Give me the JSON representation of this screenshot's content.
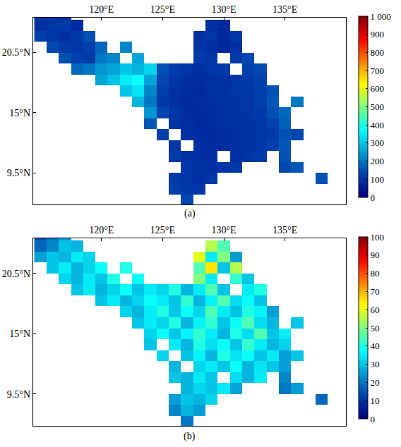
{
  "chart_data": [
    {
      "type": "heatmap",
      "label": "(a)",
      "xlim": [
        114.4,
        140.0
      ],
      "xticks": [
        {
          "value": 120,
          "label": "120°E"
        },
        {
          "value": 125,
          "label": "125°E"
        },
        {
          "value": 130,
          "label": "130°E"
        },
        {
          "value": 135,
          "label": "135°E"
        }
      ],
      "ylim": [
        6.6,
        23.7
      ],
      "yticks": [
        {
          "value": 9.5,
          "label": "9.5°N"
        },
        {
          "value": 15,
          "label": "15°N"
        },
        {
          "value": 20.5,
          "label": "20.5°N"
        }
      ],
      "colorbar_range": [
        0,
        1000
      ],
      "colorbar_ticks": [
        0,
        100,
        200,
        300,
        400,
        500,
        600,
        700,
        800,
        900,
        {
          "value": 1000,
          "label": "1 000"
        }
      ],
      "x": [
        115,
        116,
        117,
        118,
        119,
        120,
        121,
        122,
        123,
        124,
        125,
        126,
        127,
        128,
        129,
        130,
        131,
        132,
        133,
        134,
        135,
        136,
        137,
        138,
        139
      ],
      "y": [
        24,
        23,
        22,
        21,
        20,
        19,
        18,
        17,
        16,
        15,
        14,
        13,
        12,
        11,
        10,
        9,
        8,
        7
      ],
      "z": [
        [
          110,
          120,
          100,
          null,
          null,
          null,
          null,
          null,
          null,
          null,
          null,
          null,
          null,
          null,
          null,
          null,
          null,
          null,
          null,
          null,
          null,
          null,
          null,
          null,
          null
        ],
        [
          100,
          110,
          120,
          90,
          null,
          null,
          null,
          null,
          null,
          null,
          null,
          null,
          null,
          null,
          100,
          90,
          null,
          null,
          null,
          null,
          null,
          null,
          null,
          null,
          null
        ],
        [
          130,
          110,
          100,
          120,
          150,
          null,
          null,
          null,
          null,
          null,
          null,
          null,
          null,
          100,
          110,
          90,
          120,
          null,
          null,
          null,
          null,
          null,
          null,
          null,
          null
        ],
        [
          null,
          140,
          120,
          110,
          130,
          180,
          null,
          220,
          null,
          null,
          null,
          null,
          null,
          110,
          100,
          90,
          100,
          null,
          null,
          null,
          null,
          null,
          null,
          null,
          null
        ],
        [
          null,
          null,
          150,
          130,
          120,
          200,
          220,
          null,
          260,
          null,
          null,
          null,
          null,
          120,
          110,
          null,
          120,
          140,
          null,
          null,
          null,
          null,
          null,
          null,
          null
        ],
        [
          null,
          null,
          null,
          180,
          200,
          240,
          260,
          300,
          280,
          320,
          150,
          120,
          110,
          100,
          110,
          120,
          null,
          130,
          140,
          null,
          null,
          null,
          null,
          null,
          null
        ],
        [
          null,
          null,
          null,
          null,
          null,
          260,
          300,
          350,
          380,
          260,
          140,
          110,
          100,
          95,
          100,
          105,
          110,
          120,
          130,
          null,
          null,
          null,
          null,
          null,
          null
        ],
        [
          null,
          null,
          null,
          null,
          null,
          null,
          null,
          300,
          340,
          220,
          130,
          105,
          95,
          90,
          100,
          100,
          110,
          115,
          130,
          150,
          null,
          null,
          null,
          null,
          null
        ],
        [
          null,
          null,
          null,
          null,
          null,
          null,
          null,
          null,
          280,
          200,
          120,
          100,
          90,
          95,
          100,
          100,
          105,
          110,
          130,
          160,
          null,
          200,
          null,
          null,
          null
        ],
        [
          null,
          null,
          null,
          null,
          null,
          null,
          null,
          null,
          null,
          240,
          140,
          110,
          95,
          90,
          95,
          100,
          100,
          110,
          120,
          150,
          180,
          null,
          null,
          null,
          null
        ],
        [
          null,
          null,
          null,
          null,
          null,
          null,
          null,
          null,
          null,
          160,
          null,
          110,
          100,
          90,
          95,
          100,
          100,
          105,
          110,
          130,
          170,
          null,
          null,
          null,
          null
        ],
        [
          null,
          null,
          null,
          null,
          null,
          null,
          null,
          null,
          null,
          null,
          130,
          null,
          100,
          95,
          90,
          95,
          100,
          105,
          110,
          120,
          150,
          140,
          null,
          null,
          null
        ],
        [
          null,
          null,
          null,
          null,
          null,
          null,
          null,
          null,
          null,
          null,
          null,
          110,
          null,
          100,
          95,
          95,
          100,
          105,
          110,
          130,
          160,
          null,
          null,
          null,
          null
        ],
        [
          null,
          null,
          null,
          null,
          null,
          null,
          null,
          null,
          null,
          null,
          null,
          120,
          105,
          100,
          95,
          null,
          100,
          110,
          120,
          null,
          150,
          null,
          null,
          null,
          null
        ],
        [
          null,
          null,
          null,
          null,
          null,
          null,
          null,
          null,
          null,
          null,
          null,
          null,
          110,
          105,
          100,
          110,
          120,
          null,
          null,
          null,
          140,
          160,
          null,
          null,
          null
        ],
        [
          null,
          null,
          null,
          null,
          null,
          null,
          null,
          null,
          null,
          null,
          null,
          120,
          110,
          100,
          115,
          null,
          null,
          null,
          null,
          null,
          null,
          null,
          null,
          150,
          null
        ],
        [
          null,
          null,
          null,
          null,
          null,
          null,
          null,
          null,
          null,
          null,
          null,
          130,
          120,
          110,
          null,
          null,
          null,
          null,
          null,
          null,
          null,
          null,
          null,
          null,
          null
        ],
        [
          null,
          null,
          null,
          null,
          null,
          null,
          null,
          null,
          null,
          null,
          null,
          null,
          140,
          null,
          null,
          null,
          null,
          null,
          null,
          null,
          null,
          null,
          null,
          null,
          null
        ]
      ]
    },
    {
      "type": "heatmap",
      "label": "(b)",
      "xlim": [
        114.4,
        140.0
      ],
      "xticks": [
        {
          "value": 120,
          "label": "120°E"
        },
        {
          "value": 125,
          "label": "125°E"
        },
        {
          "value": 130,
          "label": "130°E"
        },
        {
          "value": 135,
          "label": "135°E"
        }
      ],
      "ylim": [
        6.6,
        23.7
      ],
      "yticks": [
        {
          "value": 9.5,
          "label": "9.5°N"
        },
        {
          "value": 15,
          "label": "15°N"
        },
        {
          "value": 20.5,
          "label": "20.5°N"
        }
      ],
      "colorbar_range": [
        0,
        100
      ],
      "colorbar_ticks": [
        0,
        10,
        20,
        30,
        40,
        50,
        60,
        70,
        80,
        90,
        100
      ],
      "x": [
        115,
        116,
        117,
        118,
        119,
        120,
        121,
        122,
        123,
        124,
        125,
        126,
        127,
        128,
        129,
        130,
        131,
        132,
        133,
        134,
        135,
        136,
        137,
        138,
        139
      ],
      "y": [
        24,
        23,
        22,
        21,
        20,
        19,
        18,
        17,
        16,
        15,
        14,
        13,
        12,
        11,
        10,
        9,
        8,
        7
      ],
      "z": [
        [
          15,
          20,
          25,
          null,
          null,
          null,
          null,
          null,
          null,
          null,
          null,
          null,
          null,
          null,
          null,
          null,
          null,
          null,
          null,
          null,
          null,
          null,
          null,
          null,
          null
        ],
        [
          18,
          22,
          30,
          28,
          null,
          null,
          null,
          null,
          null,
          null,
          null,
          null,
          null,
          null,
          55,
          45,
          null,
          null,
          null,
          null,
          null,
          null,
          null,
          null,
          null
        ],
        [
          25,
          30,
          28,
          35,
          32,
          null,
          null,
          null,
          null,
          null,
          null,
          null,
          null,
          60,
          35,
          50,
          25,
          null,
          null,
          null,
          null,
          null,
          null,
          null,
          null
        ],
        [
          null,
          30,
          35,
          28,
          32,
          38,
          null,
          40,
          null,
          null,
          null,
          null,
          null,
          45,
          65,
          30,
          55,
          null,
          null,
          null,
          null,
          null,
          null,
          null,
          null
        ],
        [
          null,
          null,
          32,
          28,
          35,
          30,
          40,
          null,
          38,
          null,
          null,
          null,
          null,
          50,
          35,
          null,
          42,
          30,
          null,
          null,
          null,
          null,
          null,
          null,
          null
        ],
        [
          null,
          null,
          null,
          30,
          35,
          28,
          32,
          38,
          30,
          35,
          32,
          40,
          28,
          35,
          45,
          30,
          null,
          35,
          40,
          null,
          null,
          null,
          null,
          null,
          null
        ],
        [
          null,
          null,
          null,
          null,
          null,
          30,
          35,
          28,
          32,
          38,
          35,
          30,
          42,
          28,
          36,
          45,
          33,
          38,
          30,
          null,
          null,
          null,
          null,
          null,
          null
        ],
        [
          null,
          null,
          null,
          null,
          null,
          null,
          null,
          32,
          28,
          35,
          40,
          30,
          38,
          32,
          45,
          35,
          30,
          40,
          36,
          25,
          null,
          null,
          null,
          null,
          null
        ],
        [
          null,
          null,
          null,
          null,
          null,
          null,
          null,
          null,
          30,
          35,
          32,
          40,
          28,
          36,
          42,
          30,
          38,
          45,
          33,
          28,
          null,
          30,
          null,
          null,
          null
        ],
        [
          null,
          null,
          null,
          null,
          null,
          null,
          null,
          null,
          null,
          32,
          38,
          30,
          36,
          42,
          35,
          28,
          40,
          33,
          45,
          30,
          35,
          null,
          null,
          null,
          null
        ],
        [
          null,
          null,
          null,
          null,
          null,
          null,
          null,
          null,
          null,
          30,
          null,
          35,
          28,
          40,
          33,
          38,
          30,
          42,
          35,
          28,
          32,
          null,
          null,
          null,
          null
        ],
        [
          null,
          null,
          null,
          null,
          null,
          null,
          null,
          null,
          null,
          null,
          32,
          null,
          30,
          36,
          28,
          40,
          34,
          38,
          30,
          35,
          25,
          30,
          null,
          null,
          null
        ],
        [
          null,
          null,
          null,
          null,
          null,
          null,
          null,
          null,
          null,
          null,
          null,
          28,
          null,
          32,
          35,
          30,
          38,
          28,
          34,
          30,
          25,
          null,
          null,
          null,
          null
        ],
        [
          null,
          null,
          null,
          null,
          null,
          null,
          null,
          null,
          null,
          null,
          null,
          30,
          28,
          35,
          30,
          null,
          33,
          28,
          35,
          null,
          22,
          null,
          null,
          null,
          null
        ],
        [
          null,
          null,
          null,
          null,
          null,
          null,
          null,
          null,
          null,
          null,
          null,
          null,
          28,
          32,
          30,
          35,
          26,
          null,
          null,
          null,
          20,
          25,
          null,
          null,
          null
        ],
        [
          null,
          null,
          null,
          null,
          null,
          null,
          null,
          null,
          null,
          null,
          null,
          25,
          30,
          28,
          32,
          null,
          null,
          null,
          null,
          null,
          null,
          null,
          null,
          18,
          null
        ],
        [
          null,
          null,
          null,
          null,
          null,
          null,
          null,
          null,
          null,
          null,
          null,
          22,
          28,
          25,
          null,
          null,
          null,
          null,
          null,
          null,
          null,
          null,
          null,
          null,
          null
        ],
        [
          null,
          null,
          null,
          null,
          null,
          null,
          null,
          null,
          null,
          null,
          null,
          null,
          20,
          null,
          null,
          null,
          null,
          null,
          null,
          null,
          null,
          null,
          null,
          null,
          null
        ]
      ]
    }
  ]
}
